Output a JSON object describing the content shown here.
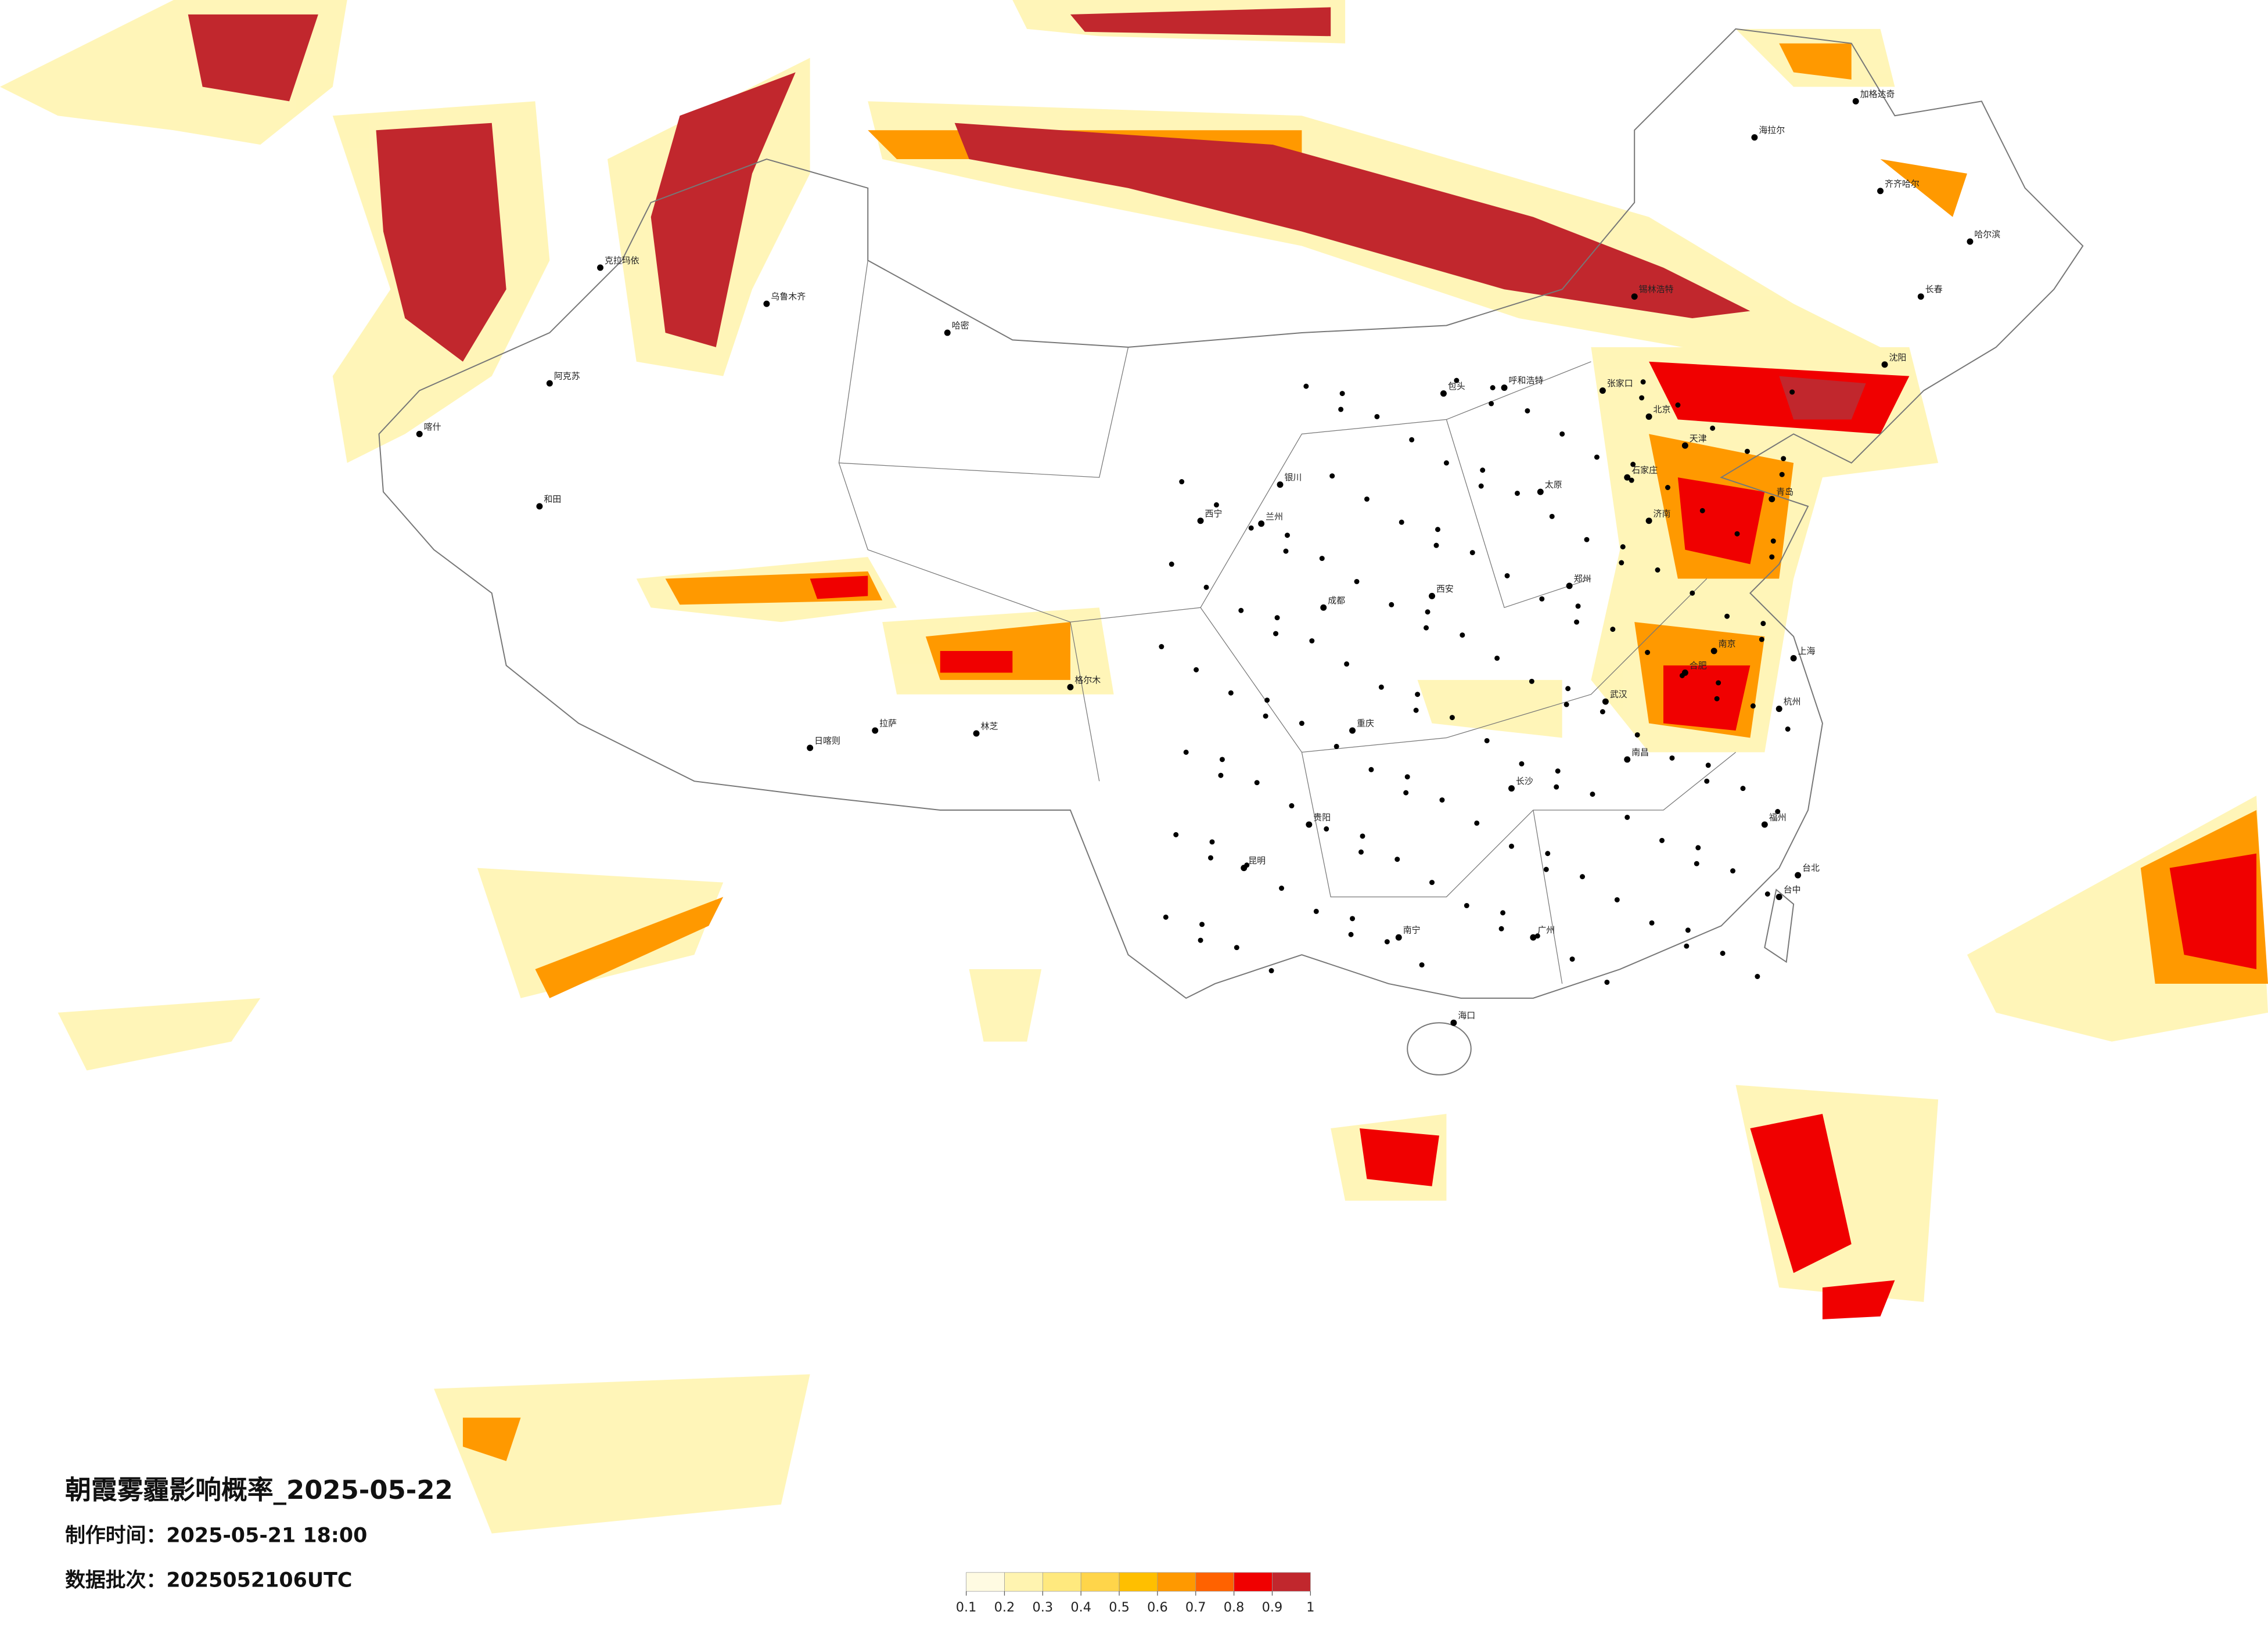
{
  "map": {
    "title": "朝霞雾霾影响概率_2025-05-22",
    "made_time": "制作时间：2025-05-21 18:00",
    "batch": "数据批次：2025052106UTC",
    "colorbar": {
      "colors": [
        "#fffbe2",
        "#fff4b0",
        "#ffe97e",
        "#ffd54a",
        "#ffbf00",
        "#ff9900",
        "#ff6200",
        "#f00000",
        "#c1272d"
      ],
      "ticks": [
        0.1,
        0.2,
        0.3,
        0.4,
        0.5,
        0.6,
        0.7,
        0.8,
        0.9,
        1
      ]
    },
    "cities": [
      "海拉尔",
      "加格达奇",
      "齐齐哈尔",
      "哈尔滨",
      "长春",
      "沈阳",
      "锡林浩特",
      "呼和浩特",
      "包头",
      "张家口",
      "北京",
      "天津",
      "石家庄",
      "太原",
      "济南",
      "青岛",
      "郑州",
      "西安",
      "兰州",
      "西宁",
      "银川",
      "乌鲁木齐",
      "克拉玛依",
      "阿克苏",
      "和田",
      "喀什",
      "哈密",
      "格尔木",
      "拉萨",
      "日喀则",
      "林芝",
      "成都",
      "重庆",
      "贵阳",
      "昆明",
      "南宁",
      "广州",
      "长沙",
      "武汉",
      "南京",
      "上海",
      "杭州",
      "福州",
      "南昌",
      "合肥",
      "海口",
      "台北",
      "台中"
    ]
  }
}
